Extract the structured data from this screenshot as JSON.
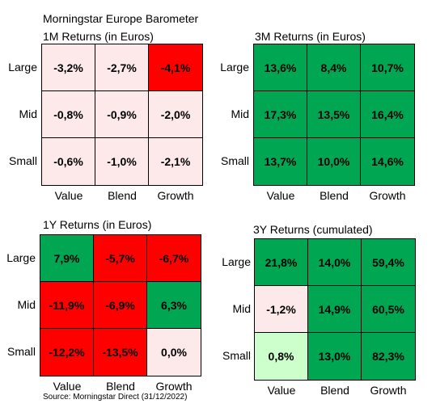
{
  "title": "Morningstar Europe Barometer",
  "source": "Source: Morningstar Direct (31/12/2022)",
  "colors": {
    "red": "#ff0000",
    "green": "#00a651",
    "pale_pink": "#fde9e9",
    "pale_green": "#ccffcc"
  },
  "chart_data": [
    {
      "type": "heatmap",
      "title": "1M Returns (in Euros)",
      "rows": [
        "Large",
        "Mid",
        "Small"
      ],
      "columns": [
        "Value",
        "Blend",
        "Growth"
      ],
      "values": [
        [
          "-3,2%",
          "-2,7%",
          "-4,1%"
        ],
        [
          "-0,8%",
          "-0,9%",
          "-2,0%"
        ],
        [
          "-0,6%",
          "-1,0%",
          "-2,1%"
        ]
      ],
      "fills": [
        [
          "pale_pink",
          "pale_pink",
          "red"
        ],
        [
          "pale_pink",
          "pale_pink",
          "pale_pink"
        ],
        [
          "pale_pink",
          "pale_pink",
          "pale_pink"
        ]
      ]
    },
    {
      "type": "heatmap",
      "title": "3M Returns (in Euros)",
      "rows": [
        "Large",
        "Mid",
        "Small"
      ],
      "columns": [
        "Value",
        "Blend",
        "Growth"
      ],
      "values": [
        [
          "13,6%",
          "8,4%",
          "10,7%"
        ],
        [
          "17,3%",
          "13,5%",
          "16,4%"
        ],
        [
          "13,7%",
          "10,0%",
          "14,6%"
        ]
      ],
      "fills": [
        [
          "green",
          "green",
          "green"
        ],
        [
          "green",
          "green",
          "green"
        ],
        [
          "green",
          "green",
          "green"
        ]
      ]
    },
    {
      "type": "heatmap",
      "title": "1Y Returns (in Euros)",
      "rows": [
        "Large",
        "Mid",
        "Small"
      ],
      "columns": [
        "Value",
        "Blend",
        "Growth"
      ],
      "values": [
        [
          "7,9%",
          "-5,7%",
          "-6,7%"
        ],
        [
          "-11,9%",
          "-6,9%",
          "6,3%"
        ],
        [
          "-12,2%",
          "-13,5%",
          "0,0%"
        ]
      ],
      "fills": [
        [
          "green",
          "red",
          "red"
        ],
        [
          "red",
          "red",
          "green"
        ],
        [
          "red",
          "red",
          "pale_pink"
        ]
      ]
    },
    {
      "type": "heatmap",
      "title": "3Y Returns (cumulated)",
      "rows": [
        "Large",
        "Mid",
        "Small"
      ],
      "columns": [
        "Value",
        "Blend",
        "Growth"
      ],
      "values": [
        [
          "21,8%",
          "14,0%",
          "59,4%"
        ],
        [
          "-1,2%",
          "14,9%",
          "60,5%"
        ],
        [
          "0,8%",
          "13,0%",
          "82,3%"
        ]
      ],
      "fills": [
        [
          "green",
          "green",
          "green"
        ],
        [
          "pale_pink",
          "green",
          "green"
        ],
        [
          "pale_green",
          "green",
          "green"
        ]
      ]
    }
  ]
}
